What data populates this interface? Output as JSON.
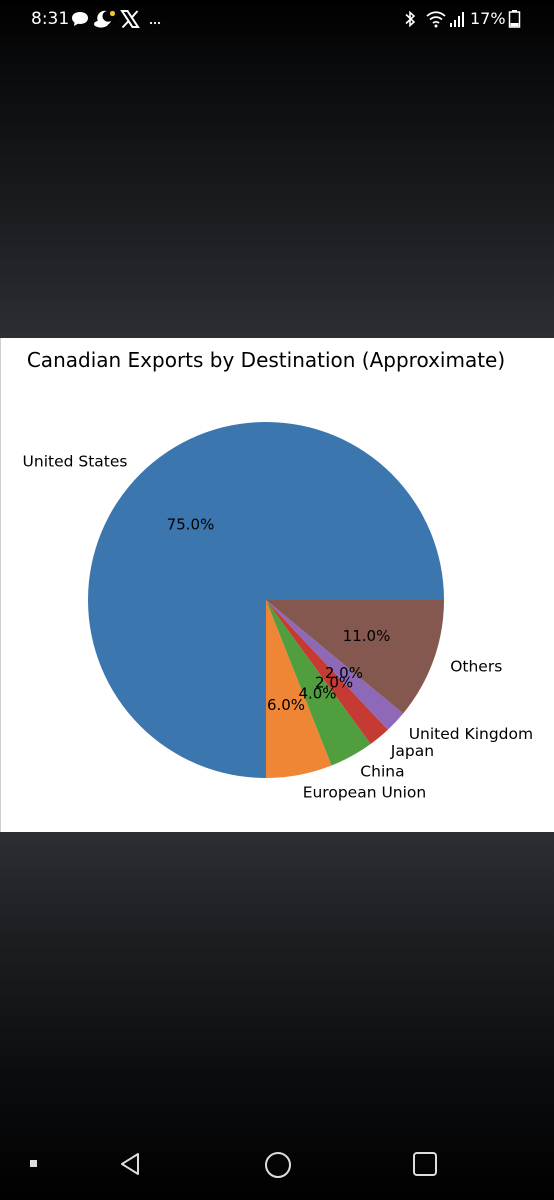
{
  "status_bar": {
    "time": "8:31",
    "battery_percent": "17%",
    "left_icons": [
      "chat-bubble-icon",
      "weather-moon-icon",
      "x-app-icon",
      "more-dots-icon"
    ],
    "right_icons": [
      "bluetooth-icon",
      "wifi-icon",
      "signal-bars-icon",
      "battery-icon"
    ]
  },
  "chart_data": {
    "type": "pie",
    "title": "Canadian Exports by Destination (Approximate)",
    "slices": [
      {
        "label": "United States",
        "value": 75.0,
        "pct_label": "75.0%",
        "color": "#3b76af"
      },
      {
        "label": "European Union",
        "value": 6.0,
        "pct_label": "6.0%",
        "color": "#ef8636"
      },
      {
        "label": "China",
        "value": 4.0,
        "pct_label": "4.0%",
        "color": "#519e3e"
      },
      {
        "label": "Japan",
        "value": 2.0,
        "pct_label": "2.0%",
        "color": "#c53a32"
      },
      {
        "label": "United Kingdom",
        "value": 2.0,
        "pct_label": "2.0%",
        "color": "#8d69b8"
      },
      {
        "label": "Others",
        "value": 11.0,
        "pct_label": "11.0%",
        "color": "#84584e"
      }
    ],
    "start_angle_deg": 0,
    "direction": "counterclockwise"
  },
  "nav_bar": {
    "icons": [
      "recents-dot-icon",
      "back-icon",
      "home-icon",
      "overview-icon"
    ]
  }
}
